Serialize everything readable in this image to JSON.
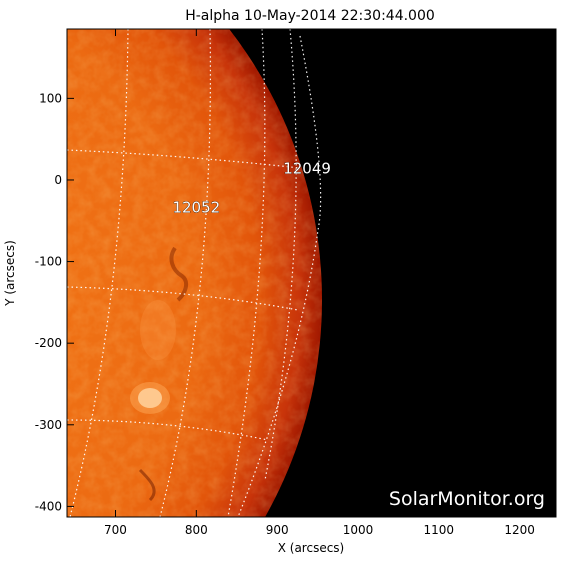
{
  "title": "H-alpha 10-May-2014 22:30:44.000",
  "watermark": "SolarMonitor.org",
  "xlabel": "X (arcsecs)",
  "ylabel": "Y (arcsecs)",
  "x_ticks": [
    {
      "value": 700,
      "label": "700"
    },
    {
      "value": 800,
      "label": "800"
    },
    {
      "value": 900,
      "label": "900"
    },
    {
      "value": 1000,
      "label": "1000"
    },
    {
      "value": 1100,
      "label": "1100"
    },
    {
      "value": 1200,
      "label": "1200"
    }
  ],
  "y_ticks": [
    {
      "value": 100,
      "label": "100"
    },
    {
      "value": 0,
      "label": "0"
    },
    {
      "value": -100,
      "label": "-100"
    },
    {
      "value": -200,
      "label": "-200"
    },
    {
      "value": -300,
      "label": "-300"
    },
    {
      "value": -400,
      "label": "-400"
    }
  ],
  "x_range": [
    640,
    1245
  ],
  "y_range": [
    -413,
    185
  ],
  "active_regions": [
    {
      "label": "12049",
      "x": 937,
      "y": 8
    },
    {
      "label": "12052",
      "x": 800,
      "y": -40
    }
  ],
  "colors": {
    "disk_bright": "#f47a18",
    "disk_mid": "#e2550a",
    "limb": "#a01800",
    "background": "#000000",
    "grid": "#ffffff"
  }
}
